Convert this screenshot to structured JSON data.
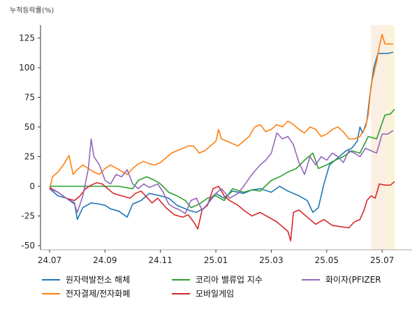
{
  "chart_data": {
    "type": "line",
    "title": "",
    "ylabel": "누적등락률(%)",
    "xlabel": "",
    "x_ticks": [
      "24.07",
      "24.09",
      "24.11",
      "25.01",
      "25.03",
      "25.05",
      "25.07"
    ],
    "y_ticks": [
      125,
      100,
      75,
      50,
      25,
      0,
      -25,
      -50
    ],
    "ylim": [
      -55,
      137
    ],
    "x_range": [
      0,
      12.6
    ],
    "grid": false,
    "legend_position": "bottom",
    "highlight_bands": [
      {
        "from": 11.6,
        "to": 12.15,
        "color": "#fbeee3"
      },
      {
        "from": 12.15,
        "to": 12.45,
        "color": "#fbf3d8"
      }
    ],
    "series": [
      {
        "name": "원자력발전소 해체",
        "color": "#1f77b4",
        "points": [
          [
            0,
            -2
          ],
          [
            0.3,
            -8
          ],
          [
            0.6,
            -10
          ],
          [
            0.9,
            -14
          ],
          [
            1.0,
            -28
          ],
          [
            1.2,
            -18
          ],
          [
            1.5,
            -14
          ],
          [
            1.8,
            -15
          ],
          [
            2.0,
            -16
          ],
          [
            2.2,
            -19
          ],
          [
            2.5,
            -21
          ],
          [
            2.8,
            -26
          ],
          [
            3.0,
            -15
          ],
          [
            3.3,
            -12
          ],
          [
            3.6,
            -6
          ],
          [
            4.0,
            -8
          ],
          [
            4.3,
            -10
          ],
          [
            4.6,
            -16
          ],
          [
            5.0,
            -20
          ],
          [
            5.3,
            -22
          ],
          [
            5.6,
            -18
          ],
          [
            6.0,
            -6
          ],
          [
            6.3,
            -10
          ],
          [
            6.6,
            -4
          ],
          [
            7.0,
            -6
          ],
          [
            7.3,
            -3
          ],
          [
            7.6,
            -2
          ],
          [
            8.0,
            -5
          ],
          [
            8.3,
            0
          ],
          [
            8.6,
            -4
          ],
          [
            9.0,
            -8
          ],
          [
            9.3,
            -12
          ],
          [
            9.5,
            -22
          ],
          [
            9.7,
            -18
          ],
          [
            9.9,
            2
          ],
          [
            10.1,
            18
          ],
          [
            10.3,
            22
          ],
          [
            10.5,
            26
          ],
          [
            10.7,
            30
          ],
          [
            10.9,
            32
          ],
          [
            11.1,
            38
          ],
          [
            11.2,
            50
          ],
          [
            11.3,
            45
          ],
          [
            11.45,
            55
          ],
          [
            11.55,
            75
          ],
          [
            11.7,
            100
          ],
          [
            11.85,
            112
          ],
          [
            12.0,
            112
          ],
          [
            12.2,
            112
          ],
          [
            12.4,
            113
          ]
        ]
      },
      {
        "name": "전자결제/전자화폐",
        "color": "#ff7f0e",
        "points": [
          [
            0,
            -3
          ],
          [
            0.1,
            8
          ],
          [
            0.3,
            12
          ],
          [
            0.5,
            18
          ],
          [
            0.7,
            26
          ],
          [
            0.85,
            10
          ],
          [
            1.0,
            14
          ],
          [
            1.2,
            18
          ],
          [
            1.4,
            15
          ],
          [
            1.6,
            12
          ],
          [
            1.8,
            10
          ],
          [
            2.0,
            15
          ],
          [
            2.2,
            18
          ],
          [
            2.5,
            14
          ],
          [
            2.8,
            10
          ],
          [
            3.0,
            15
          ],
          [
            3.2,
            19
          ],
          [
            3.4,
            21
          ],
          [
            3.6,
            19
          ],
          [
            3.8,
            18
          ],
          [
            4.0,
            20
          ],
          [
            4.2,
            24
          ],
          [
            4.4,
            28
          ],
          [
            4.6,
            30
          ],
          [
            4.8,
            32
          ],
          [
            5.0,
            34
          ],
          [
            5.2,
            34
          ],
          [
            5.4,
            28
          ],
          [
            5.6,
            30
          ],
          [
            5.8,
            34
          ],
          [
            6.0,
            38
          ],
          [
            6.1,
            48
          ],
          [
            6.2,
            40
          ],
          [
            6.4,
            38
          ],
          [
            6.6,
            36
          ],
          [
            6.8,
            34
          ],
          [
            7.0,
            38
          ],
          [
            7.2,
            42
          ],
          [
            7.4,
            50
          ],
          [
            7.6,
            52
          ],
          [
            7.8,
            46
          ],
          [
            8.0,
            48
          ],
          [
            8.2,
            52
          ],
          [
            8.4,
            50
          ],
          [
            8.6,
            55
          ],
          [
            8.8,
            52
          ],
          [
            9.0,
            48
          ],
          [
            9.2,
            45
          ],
          [
            9.4,
            50
          ],
          [
            9.6,
            48
          ],
          [
            9.8,
            42
          ],
          [
            10.0,
            44
          ],
          [
            10.2,
            48
          ],
          [
            10.4,
            50
          ],
          [
            10.6,
            46
          ],
          [
            10.8,
            40
          ],
          [
            11.0,
            40
          ],
          [
            11.2,
            42
          ],
          [
            11.4,
            50
          ],
          [
            11.5,
            60
          ],
          [
            11.6,
            85
          ],
          [
            11.7,
            95
          ],
          [
            11.8,
            105
          ],
          [
            11.9,
            118
          ],
          [
            12.0,
            128
          ],
          [
            12.1,
            120
          ],
          [
            12.4,
            120
          ]
        ]
      },
      {
        "name": "코리아 밸류업 지수",
        "color": "#2ca02c",
        "points": [
          [
            0,
            0
          ],
          [
            0.5,
            0
          ],
          [
            1.0,
            0
          ],
          [
            1.5,
            0
          ],
          [
            2.0,
            0
          ],
          [
            2.5,
            0
          ],
          [
            3.0,
            -2
          ],
          [
            3.2,
            5
          ],
          [
            3.5,
            8
          ],
          [
            3.8,
            5
          ],
          [
            4.0,
            2
          ],
          [
            4.3,
            -5
          ],
          [
            4.6,
            -8
          ],
          [
            4.9,
            -12
          ],
          [
            5.1,
            -18
          ],
          [
            5.4,
            -15
          ],
          [
            5.7,
            -10
          ],
          [
            6.0,
            -8
          ],
          [
            6.3,
            -12
          ],
          [
            6.6,
            -2
          ],
          [
            7.0,
            -5
          ],
          [
            7.3,
            -3
          ],
          [
            7.6,
            -4
          ],
          [
            8.0,
            5
          ],
          [
            8.3,
            8
          ],
          [
            8.6,
            12
          ],
          [
            8.9,
            15
          ],
          [
            9.2,
            22
          ],
          [
            9.5,
            28
          ],
          [
            9.7,
            15
          ],
          [
            10.0,
            18
          ],
          [
            10.3,
            22
          ],
          [
            10.6,
            25
          ],
          [
            10.9,
            30
          ],
          [
            11.2,
            28
          ],
          [
            11.5,
            42
          ],
          [
            11.8,
            40
          ],
          [
            11.95,
            50
          ],
          [
            12.1,
            60
          ],
          [
            12.3,
            61
          ],
          [
            12.45,
            65
          ]
        ]
      },
      {
        "name": "모바일게임",
        "color": "#d62728",
        "points": [
          [
            0,
            -1
          ],
          [
            0.3,
            -5
          ],
          [
            0.6,
            -10
          ],
          [
            0.9,
            -12
          ],
          [
            1.1,
            -8
          ],
          [
            1.3,
            -2
          ],
          [
            1.5,
            1
          ],
          [
            1.7,
            3
          ],
          [
            1.9,
            2
          ],
          [
            2.1,
            -2
          ],
          [
            2.3,
            -6
          ],
          [
            2.6,
            -8
          ],
          [
            2.9,
            -10
          ],
          [
            3.1,
            -6
          ],
          [
            3.3,
            -4
          ],
          [
            3.5,
            -9
          ],
          [
            3.7,
            -14
          ],
          [
            3.9,
            -10
          ],
          [
            4.2,
            -18
          ],
          [
            4.5,
            -24
          ],
          [
            4.8,
            -26
          ],
          [
            5.0,
            -24
          ],
          [
            5.2,
            -30
          ],
          [
            5.35,
            -36
          ],
          [
            5.5,
            -20
          ],
          [
            5.7,
            -16
          ],
          [
            5.9,
            -2
          ],
          [
            6.1,
            0
          ],
          [
            6.3,
            -8
          ],
          [
            6.5,
            -12
          ],
          [
            6.8,
            -16
          ],
          [
            7.0,
            -20
          ],
          [
            7.3,
            -25
          ],
          [
            7.6,
            -22
          ],
          [
            7.9,
            -26
          ],
          [
            8.2,
            -30
          ],
          [
            8.4,
            -34
          ],
          [
            8.6,
            -38
          ],
          [
            8.7,
            -46
          ],
          [
            8.8,
            -22
          ],
          [
            9.0,
            -20
          ],
          [
            9.3,
            -26
          ],
          [
            9.6,
            -32
          ],
          [
            9.9,
            -28
          ],
          [
            10.2,
            -33
          ],
          [
            10.5,
            -34
          ],
          [
            10.8,
            -35
          ],
          [
            11.0,
            -30
          ],
          [
            11.2,
            -28
          ],
          [
            11.35,
            -20
          ],
          [
            11.45,
            -12
          ],
          [
            11.6,
            -8
          ],
          [
            11.75,
            -10
          ],
          [
            11.9,
            2
          ],
          [
            12.1,
            1
          ],
          [
            12.3,
            1
          ],
          [
            12.45,
            4
          ]
        ]
      },
      {
        "name": "화이자(PFIZER",
        "color": "#9467bd",
        "points": [
          [
            0,
            -2
          ],
          [
            0.3,
            -5
          ],
          [
            0.6,
            -10
          ],
          [
            0.9,
            -15
          ],
          [
            1.0,
            -22
          ],
          [
            1.2,
            -8
          ],
          [
            1.4,
            15
          ],
          [
            1.5,
            40
          ],
          [
            1.6,
            25
          ],
          [
            1.8,
            18
          ],
          [
            2.0,
            5
          ],
          [
            2.2,
            2
          ],
          [
            2.4,
            10
          ],
          [
            2.6,
            8
          ],
          [
            2.8,
            14
          ],
          [
            3.0,
            2
          ],
          [
            3.2,
            -2
          ],
          [
            3.4,
            2
          ],
          [
            3.6,
            -1
          ],
          [
            3.9,
            2
          ],
          [
            4.1,
            -5
          ],
          [
            4.3,
            -15
          ],
          [
            4.5,
            -18
          ],
          [
            4.7,
            -20
          ],
          [
            4.9,
            -23
          ],
          [
            5.1,
            -12
          ],
          [
            5.3,
            -10
          ],
          [
            5.5,
            -20
          ],
          [
            5.7,
            -15
          ],
          [
            5.9,
            -8
          ],
          [
            6.2,
            -2
          ],
          [
            6.5,
            -10
          ],
          [
            6.8,
            -6
          ],
          [
            7.0,
            0
          ],
          [
            7.3,
            10
          ],
          [
            7.6,
            18
          ],
          [
            7.8,
            22
          ],
          [
            8.0,
            28
          ],
          [
            8.2,
            45
          ],
          [
            8.4,
            40
          ],
          [
            8.6,
            42
          ],
          [
            8.8,
            35
          ],
          [
            9.0,
            20
          ],
          [
            9.2,
            10
          ],
          [
            9.4,
            25
          ],
          [
            9.6,
            18
          ],
          [
            9.8,
            25
          ],
          [
            10.0,
            22
          ],
          [
            10.2,
            28
          ],
          [
            10.4,
            25
          ],
          [
            10.6,
            20
          ],
          [
            10.8,
            30
          ],
          [
            11.0,
            28
          ],
          [
            11.2,
            25
          ],
          [
            11.4,
            32
          ],
          [
            11.6,
            30
          ],
          [
            11.8,
            28
          ],
          [
            12.0,
            44
          ],
          [
            12.2,
            44
          ],
          [
            12.4,
            47
          ]
        ]
      }
    ]
  }
}
